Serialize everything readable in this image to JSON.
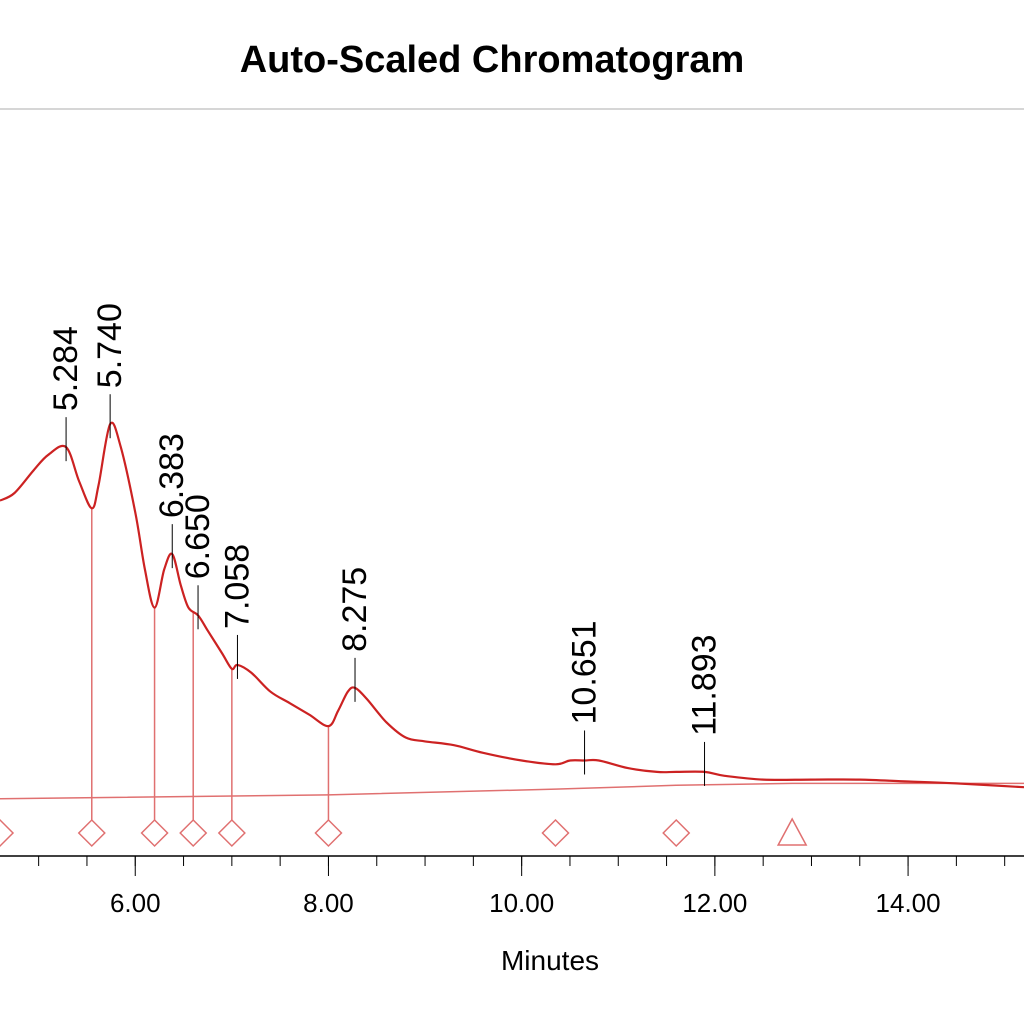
{
  "chart_data": {
    "type": "line",
    "title": "Auto-Scaled Chromatogram",
    "xlabel": "Minutes",
    "ylabel": "",
    "xlim": [
      4.6,
      15.2
    ],
    "ylim": [
      -0.35,
      1.55
    ],
    "x_ticks": [
      {
        "value": 6,
        "label": "6.00"
      },
      {
        "value": 8,
        "label": "8.00"
      },
      {
        "value": 10,
        "label": "10.00"
      },
      {
        "value": 12,
        "label": "12.00"
      },
      {
        "value": 14,
        "label": "14.00"
      }
    ],
    "x_minor_ticks": [
      4.5,
      5,
      5.5,
      6,
      6.5,
      7,
      7.5,
      8,
      8.5,
      9,
      9.5,
      10,
      10.5,
      11,
      11.5,
      12,
      12.5,
      13,
      13.5,
      14,
      14.5,
      15
    ],
    "grid": false,
    "colors": {
      "trace": "#cc2222",
      "baseline": "#e07070",
      "markers": "#e07070",
      "axis": "#000000",
      "title_rule": "#c8c8c8"
    },
    "series": [
      {
        "points": [
          [
            4.6,
            0.58
          ],
          [
            4.75,
            0.6
          ],
          [
            4.95,
            0.66
          ],
          [
            5.1,
            0.7
          ],
          [
            5.284,
            0.72
          ],
          [
            5.42,
            0.63
          ],
          [
            5.55,
            0.56
          ],
          [
            5.62,
            0.62
          ],
          [
            5.74,
            0.78
          ],
          [
            5.85,
            0.72
          ],
          [
            6.0,
            0.55
          ],
          [
            6.1,
            0.4
          ],
          [
            6.2,
            0.3
          ],
          [
            6.3,
            0.4
          ],
          [
            6.383,
            0.44
          ],
          [
            6.47,
            0.36
          ],
          [
            6.55,
            0.3
          ],
          [
            6.65,
            0.28
          ],
          [
            6.75,
            0.24
          ],
          [
            6.9,
            0.18
          ],
          [
            7.0,
            0.14
          ],
          [
            7.058,
            0.15
          ],
          [
            7.2,
            0.13
          ],
          [
            7.4,
            0.08
          ],
          [
            7.6,
            0.05
          ],
          [
            7.8,
            0.02
          ],
          [
            8.0,
            -0.01
          ],
          [
            8.1,
            0.03
          ],
          [
            8.2,
            0.08
          ],
          [
            8.275,
            0.09
          ],
          [
            8.4,
            0.06
          ],
          [
            8.6,
            0.0
          ],
          [
            8.8,
            -0.04
          ],
          [
            9.0,
            -0.05
          ],
          [
            9.3,
            -0.06
          ],
          [
            9.6,
            -0.08
          ],
          [
            10.0,
            -0.1
          ],
          [
            10.35,
            -0.11
          ],
          [
            10.5,
            -0.1
          ],
          [
            10.651,
            -0.1
          ],
          [
            10.8,
            -0.1
          ],
          [
            11.1,
            -0.12
          ],
          [
            11.4,
            -0.13
          ],
          [
            11.6,
            -0.13
          ],
          [
            11.893,
            -0.13
          ],
          [
            12.1,
            -0.14
          ],
          [
            12.5,
            -0.15
          ],
          [
            13.0,
            -0.15
          ],
          [
            13.5,
            -0.15
          ],
          [
            14.0,
            -0.155
          ],
          [
            14.5,
            -0.16
          ],
          [
            15.2,
            -0.17
          ]
        ]
      }
    ],
    "baseline": [
      [
        4.6,
        -0.2
      ],
      [
        8.0,
        -0.19
      ],
      [
        10.35,
        -0.175
      ],
      [
        11.6,
        -0.165
      ],
      [
        12.8,
        -0.16
      ],
      [
        15.2,
        -0.16
      ]
    ],
    "peaks": [
      {
        "rt": 5.284,
        "label": "5.284",
        "y": 0.72
      },
      {
        "rt": 5.74,
        "label": "5.740",
        "y": 0.78
      },
      {
        "rt": 6.383,
        "label": "6.383",
        "y": 0.44
      },
      {
        "rt": 6.65,
        "label": "6.650",
        "y": 0.28
      },
      {
        "rt": 7.058,
        "label": "7.058",
        "y": 0.15
      },
      {
        "rt": 8.275,
        "label": "8.275",
        "y": 0.09
      },
      {
        "rt": 10.651,
        "label": "10.651",
        "y": -0.1
      },
      {
        "rt": 11.893,
        "label": "11.893",
        "y": -0.13
      }
    ],
    "drops": [
      {
        "x": 5.55,
        "y": 0.56
      },
      {
        "x": 6.2,
        "y": 0.3
      },
      {
        "x": 6.6,
        "y": 0.29
      },
      {
        "x": 7.0,
        "y": 0.14
      },
      {
        "x": 8.0,
        "y": -0.01
      }
    ],
    "markers": [
      {
        "x": 4.6,
        "shape": "diamond"
      },
      {
        "x": 5.55,
        "shape": "diamond"
      },
      {
        "x": 6.2,
        "shape": "diamond"
      },
      {
        "x": 6.6,
        "shape": "diamond"
      },
      {
        "x": 7.0,
        "shape": "diamond"
      },
      {
        "x": 8.0,
        "shape": "diamond"
      },
      {
        "x": 10.35,
        "shape": "diamond"
      },
      {
        "x": 11.6,
        "shape": "diamond"
      },
      {
        "x": 12.8,
        "shape": "triangle"
      }
    ]
  }
}
